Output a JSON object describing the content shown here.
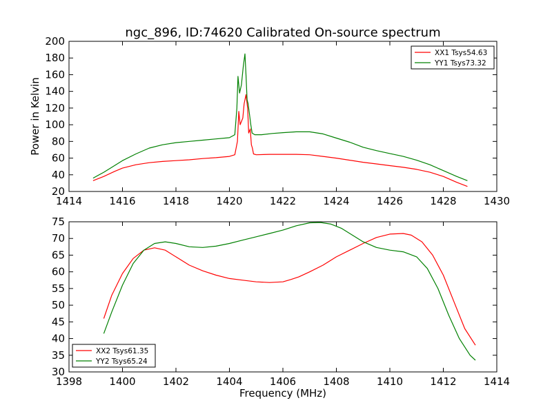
{
  "chart_data": [
    {
      "type": "line",
      "title": "ngc_896, ID:74620 Calibrated On-source spectrum",
      "xlabel": "",
      "ylabel": "Power in Kelvin",
      "xlim": [
        1414,
        1430
      ],
      "ylim": [
        20,
        200
      ],
      "xticks": [
        1414,
        1416,
        1418,
        1420,
        1422,
        1424,
        1426,
        1428,
        1430
      ],
      "yticks": [
        20,
        40,
        60,
        80,
        100,
        120,
        140,
        160,
        180,
        200
      ],
      "grid": false,
      "legend_position": "top-right",
      "series": [
        {
          "name": "XX1 Tsys54.63",
          "color": "#ff0000",
          "x": [
            1414.9,
            1415.3,
            1415.7,
            1416.0,
            1416.5,
            1417.0,
            1417.5,
            1418.0,
            1418.5,
            1419.0,
            1419.5,
            1420.0,
            1420.2,
            1420.3,
            1420.35,
            1420.4,
            1420.5,
            1420.55,
            1420.62,
            1420.68,
            1420.72,
            1420.78,
            1420.82,
            1420.86,
            1420.9,
            1421.0,
            1421.5,
            1422.0,
            1422.5,
            1423.0,
            1423.5,
            1424.0,
            1424.5,
            1425.0,
            1425.5,
            1426.0,
            1426.5,
            1427.0,
            1427.5,
            1428.0,
            1428.5,
            1428.9
          ],
          "y": [
            33,
            38,
            44,
            48,
            52,
            54.5,
            56,
            57,
            58,
            59.5,
            60.5,
            62,
            64,
            80,
            116,
            100,
            108,
            125,
            136,
            120,
            90,
            95,
            76,
            72,
            65,
            64,
            64.5,
            64.5,
            64.5,
            64,
            62,
            60,
            57.5,
            55,
            53,
            51,
            49,
            46.5,
            43,
            38,
            31,
            26
          ]
        },
        {
          "name": "YY1 Tsys73.32",
          "color": "#008000",
          "x": [
            1414.9,
            1415.3,
            1415.7,
            1416.0,
            1416.5,
            1417.0,
            1417.5,
            1418.0,
            1418.5,
            1419.0,
            1419.5,
            1420.0,
            1420.2,
            1420.28,
            1420.32,
            1420.38,
            1420.45,
            1420.52,
            1420.58,
            1420.62,
            1420.66,
            1420.7,
            1420.74,
            1420.8,
            1420.85,
            1420.95,
            1421.2,
            1421.6,
            1422.0,
            1422.5,
            1423.0,
            1423.5,
            1424.0,
            1424.5,
            1425.0,
            1425.5,
            1426.0,
            1426.5,
            1427.0,
            1427.5,
            1428.0,
            1428.5,
            1428.9
          ],
          "y": [
            36,
            43,
            51,
            57,
            65,
            72,
            76,
            78.5,
            80,
            81.5,
            83,
            84.5,
            88,
            120,
            158,
            138,
            148,
            170,
            185,
            160,
            130,
            125,
            115,
            100,
            90,
            88,
            88,
            89.5,
            90.5,
            91.5,
            91.5,
            89,
            84,
            79,
            73,
            69,
            65.5,
            62,
            57.5,
            52,
            45,
            38,
            33
          ]
        }
      ]
    },
    {
      "type": "line",
      "title": "",
      "xlabel": "Frequency (MHz)",
      "ylabel": "",
      "xlim": [
        1398,
        1414
      ],
      "ylim": [
        30,
        75
      ],
      "xticks": [
        1398,
        1400,
        1402,
        1404,
        1406,
        1408,
        1410,
        1412,
        1414
      ],
      "yticks": [
        30,
        35,
        40,
        45,
        50,
        55,
        60,
        65,
        70,
        75
      ],
      "grid": false,
      "legend_position": "bottom-left",
      "series": [
        {
          "name": "XX2 Tsys61.35",
          "color": "#ff0000",
          "x": [
            1399.3,
            1399.6,
            1400.0,
            1400.4,
            1400.8,
            1401.2,
            1401.6,
            1402.0,
            1402.5,
            1403.0,
            1403.5,
            1404.0,
            1404.5,
            1405.0,
            1405.5,
            1406.0,
            1406.3,
            1406.6,
            1407.0,
            1407.5,
            1408.0,
            1408.5,
            1409.0,
            1409.5,
            1410.0,
            1410.5,
            1410.8,
            1411.2,
            1411.6,
            1412.0,
            1412.4,
            1412.8,
            1413.2
          ],
          "y": [
            46,
            53,
            59.5,
            64,
            66.5,
            67.2,
            66.5,
            64.5,
            62,
            60.3,
            59,
            58,
            57.5,
            57,
            56.8,
            57,
            57.7,
            58.5,
            60,
            62,
            64.5,
            66.5,
            68.5,
            70.3,
            71.3,
            71.5,
            71,
            69,
            65,
            59,
            51,
            43,
            38
          ]
        },
        {
          "name": "YY2 Tsys65.24",
          "color": "#008000",
          "x": [
            1399.3,
            1399.6,
            1400.0,
            1400.4,
            1400.8,
            1401.2,
            1401.6,
            1402.0,
            1402.5,
            1403.0,
            1403.5,
            1404.0,
            1404.5,
            1405.0,
            1405.5,
            1406.0,
            1406.5,
            1407.0,
            1407.4,
            1407.8,
            1408.2,
            1408.6,
            1409.0,
            1409.5,
            1410.0,
            1410.5,
            1411.0,
            1411.4,
            1411.8,
            1412.2,
            1412.6,
            1413.0,
            1413.2
          ],
          "y": [
            41.5,
            48,
            56,
            62.5,
            66.5,
            68.5,
            69,
            68.5,
            67.5,
            67.3,
            67.7,
            68.5,
            69.5,
            70.5,
            71.5,
            72.5,
            73.8,
            74.7,
            74.8,
            74.3,
            73,
            71,
            69,
            67.3,
            66.5,
            66,
            64.5,
            61,
            55,
            47,
            40,
            35,
            33.5
          ]
        }
      ]
    }
  ]
}
